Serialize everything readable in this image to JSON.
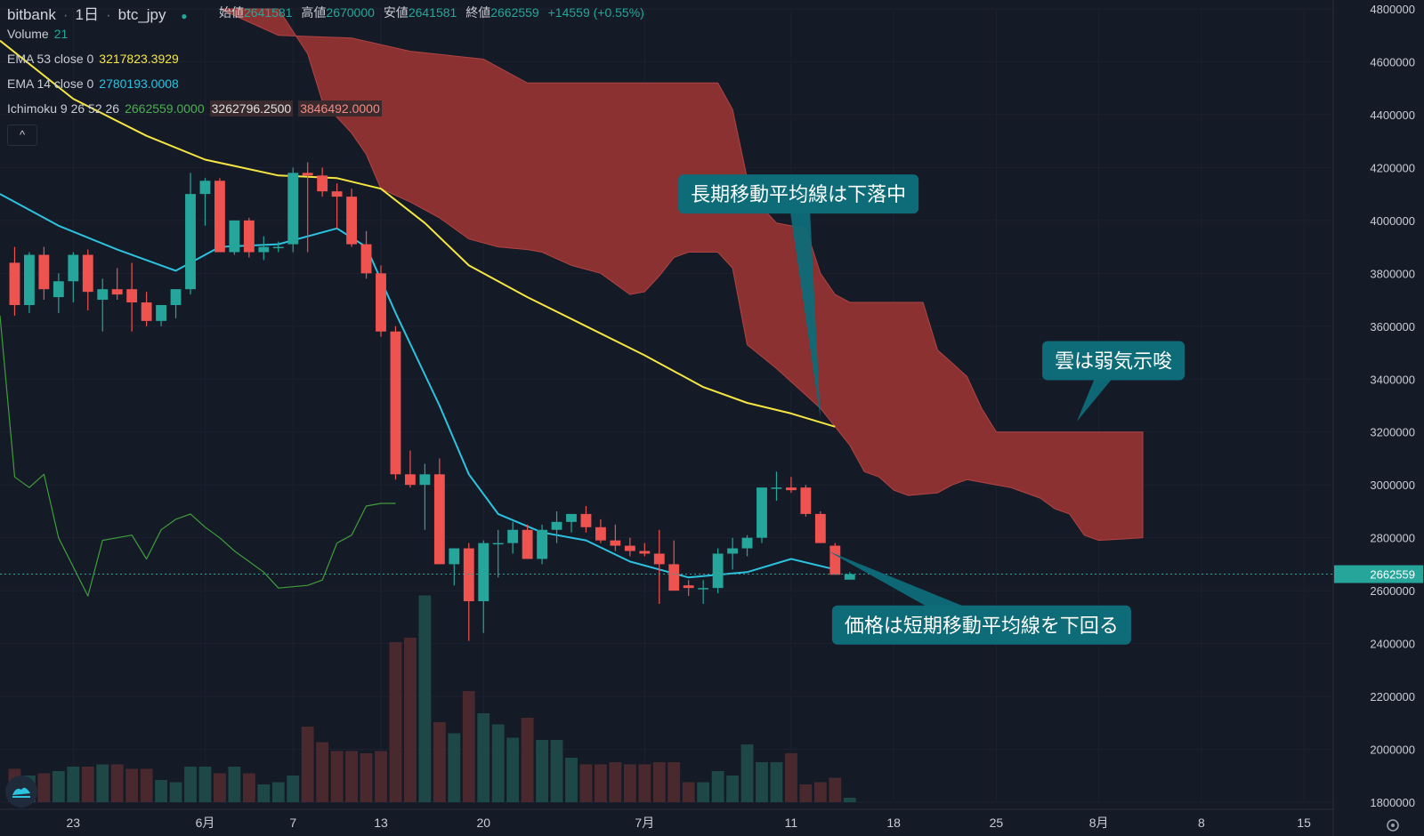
{
  "header": {
    "exchange": "bitbank",
    "interval": "1日",
    "symbol": "btc_jpy",
    "open_label": "始値",
    "open_value": "2641581",
    "high_label": "高値",
    "high_value": "2670000",
    "low_label": "安値",
    "low_value": "2641581",
    "close_label": "終値",
    "close_value": "2662559",
    "change": "+14559 (+0.55%)"
  },
  "legend": {
    "volume_label": "Volume",
    "volume_value": "21",
    "ema53_label": "EMA 53 close 0",
    "ema53_value": "3217823.3929",
    "ema14_label": "EMA 14 close 0",
    "ema14_value": "2780193.0008",
    "ichimoku_label": "Ichimoku 9 26 52 26",
    "ichimoku_v1": "2662559.0000",
    "ichimoku_v2": "3262796.2500",
    "ichimoku_v3": "3846492.0000",
    "collapse_glyph": "^"
  },
  "colors": {
    "bg": "#151a27",
    "up": "#26a69a",
    "down": "#ef5350",
    "ema53": "#f5e642",
    "ema14": "#2cc3e0",
    "lagging": "#3f9e3a",
    "cloud": "#8b3131",
    "callout": "#0e6b78",
    "axis_text": "#c9ccd3"
  },
  "chart_data": {
    "type": "candlestick",
    "title": "bitbank 1日 btc_jpy",
    "ylim": [
      1800000,
      4800000
    ],
    "y_ticks": [
      4800000,
      4600000,
      4400000,
      4200000,
      4000000,
      3800000,
      3600000,
      3400000,
      3200000,
      3000000,
      2800000,
      2600000,
      2400000,
      2200000,
      2000000,
      1800000
    ],
    "y_tick_labels": [
      "4800000",
      "4600000",
      "4400000",
      "4200000",
      "4000000",
      "3800000",
      "3600000",
      "3400000",
      "3200000",
      "3000000",
      "2800000",
      "2600000",
      "2400000",
      "2200000",
      "2000000",
      "1800000"
    ],
    "x_start_day": -1,
    "x_end_day": 90,
    "x_ticks": [
      {
        "day": 4,
        "label": "23"
      },
      {
        "day": 13,
        "label": "6月"
      },
      {
        "day": 19,
        "label": "7"
      },
      {
        "day": 25,
        "label": "13"
      },
      {
        "day": 32,
        "label": "20"
      },
      {
        "day": 43,
        "label": "7月"
      },
      {
        "day": 53,
        "label": "11"
      },
      {
        "day": 60,
        "label": "18"
      },
      {
        "day": 67,
        "label": "25"
      },
      {
        "day": 74,
        "label": "8月"
      },
      {
        "day": 81,
        "label": "8"
      },
      {
        "day": 88,
        "label": "15"
      }
    ],
    "last_price": 2662559,
    "last_price_label": "2662559",
    "candles": [
      [
        3840000,
        3900000,
        3640000,
        3680000
      ],
      [
        3680000,
        3880000,
        3650000,
        3870000
      ],
      [
        3870000,
        3900000,
        3700000,
        3740000
      ],
      [
        3710000,
        3800000,
        3650000,
        3770000
      ],
      [
        3770000,
        3880000,
        3690000,
        3870000
      ],
      [
        3870000,
        3890000,
        3660000,
        3730000
      ],
      [
        3700000,
        3780000,
        3580000,
        3740000
      ],
      [
        3740000,
        3820000,
        3700000,
        3720000
      ],
      [
        3740000,
        3840000,
        3580000,
        3690000
      ],
      [
        3690000,
        3730000,
        3600000,
        3620000
      ],
      [
        3620000,
        3680000,
        3600000,
        3680000
      ],
      [
        3680000,
        3740000,
        3630000,
        3740000
      ],
      [
        3740000,
        4180000,
        3720000,
        4100000
      ],
      [
        4100000,
        4160000,
        3980000,
        4150000
      ],
      [
        4150000,
        4160000,
        3880000,
        3880000
      ],
      [
        3880000,
        4000000,
        3870000,
        4000000
      ],
      [
        4000000,
        4010000,
        3860000,
        3880000
      ],
      [
        3880000,
        3940000,
        3850000,
        3900000
      ],
      [
        3900000,
        3920000,
        3880000,
        3900000
      ],
      [
        3910000,
        4200000,
        3880000,
        4180000
      ],
      [
        4180000,
        4220000,
        3880000,
        4170000
      ],
      [
        4170000,
        4200000,
        4090000,
        4110000
      ],
      [
        4110000,
        4140000,
        3970000,
        4090000
      ],
      [
        4090000,
        4120000,
        3900000,
        3910000
      ],
      [
        3910000,
        3960000,
        3780000,
        3800000
      ],
      [
        3800000,
        3830000,
        3560000,
        3580000
      ],
      [
        3580000,
        3600000,
        3020000,
        3040000
      ],
      [
        3040000,
        3130000,
        2990000,
        3000000
      ],
      [
        3000000,
        3080000,
        2830000,
        3040000
      ],
      [
        3040000,
        3100000,
        2720000,
        2700000
      ],
      [
        2700000,
        2760000,
        2620000,
        2760000
      ],
      [
        2760000,
        2780000,
        2410000,
        2560000
      ],
      [
        2560000,
        2790000,
        2440000,
        2780000
      ],
      [
        2780000,
        2830000,
        2650000,
        2780000
      ],
      [
        2780000,
        2860000,
        2740000,
        2830000
      ],
      [
        2830000,
        2850000,
        2720000,
        2720000
      ],
      [
        2720000,
        2850000,
        2700000,
        2830000
      ],
      [
        2830000,
        2900000,
        2780000,
        2860000
      ],
      [
        2860000,
        2890000,
        2820000,
        2890000
      ],
      [
        2890000,
        2920000,
        2820000,
        2840000
      ],
      [
        2840000,
        2870000,
        2780000,
        2790000
      ],
      [
        2790000,
        2850000,
        2750000,
        2770000
      ],
      [
        2770000,
        2800000,
        2730000,
        2750000
      ],
      [
        2750000,
        2780000,
        2730000,
        2740000
      ],
      [
        2740000,
        2830000,
        2550000,
        2700000
      ],
      [
        2700000,
        2790000,
        2600000,
        2600000
      ],
      [
        2620000,
        2640000,
        2580000,
        2610000
      ],
      [
        2610000,
        2640000,
        2550000,
        2610000
      ],
      [
        2610000,
        2760000,
        2590000,
        2740000
      ],
      [
        2740000,
        2800000,
        2680000,
        2760000
      ],
      [
        2760000,
        2810000,
        2730000,
        2800000
      ],
      [
        2800000,
        2990000,
        2780000,
        2990000
      ],
      [
        2990000,
        3050000,
        2940000,
        2990000
      ],
      [
        2990000,
        3030000,
        2970000,
        2980000
      ],
      [
        2990000,
        3000000,
        2880000,
        2890000
      ],
      [
        2890000,
        2900000,
        2780000,
        2780000
      ],
      [
        2770000,
        2780000,
        2660000,
        2660000
      ],
      [
        2641581,
        2670000,
        2641581,
        2662559
      ]
    ],
    "volumes": [
      15,
      12,
      13,
      14,
      16,
      16,
      17,
      17,
      15,
      15,
      10,
      9,
      16,
      16,
      13,
      16,
      13,
      8,
      9,
      12,
      34,
      27,
      23,
      23,
      22,
      23,
      72,
      74,
      93,
      36,
      31,
      50,
      40,
      35,
      29,
      38,
      28,
      28,
      20,
      17,
      17,
      18,
      17,
      17,
      18,
      18,
      9,
      9,
      14,
      12,
      26,
      18,
      18,
      22,
      8,
      9,
      11,
      2
    ],
    "ema53": [
      [
        -1,
        4680000
      ],
      [
        4,
        4460000
      ],
      [
        9,
        4320000
      ],
      [
        13,
        4230000
      ],
      [
        18,
        4170000
      ],
      [
        22,
        4160000
      ],
      [
        25,
        4120000
      ],
      [
        28,
        3990000
      ],
      [
        31,
        3830000
      ],
      [
        35,
        3710000
      ],
      [
        39,
        3600000
      ],
      [
        43,
        3490000
      ],
      [
        47,
        3370000
      ],
      [
        50,
        3310000
      ],
      [
        53,
        3270000
      ],
      [
        56,
        3220000
      ]
    ],
    "ema14": [
      [
        -1,
        4100000
      ],
      [
        3,
        3980000
      ],
      [
        7,
        3890000
      ],
      [
        11,
        3810000
      ],
      [
        14,
        3900000
      ],
      [
        18,
        3910000
      ],
      [
        22,
        3970000
      ],
      [
        24,
        3900000
      ],
      [
        26,
        3650000
      ],
      [
        29,
        3300000
      ],
      [
        31,
        3040000
      ],
      [
        33,
        2890000
      ],
      [
        36,
        2820000
      ],
      [
        39,
        2790000
      ],
      [
        42,
        2710000
      ],
      [
        46,
        2650000
      ],
      [
        50,
        2670000
      ],
      [
        53,
        2720000
      ],
      [
        56,
        2680000
      ]
    ],
    "lagging_span": [
      [
        -1,
        3640000
      ],
      [
        0,
        3030000
      ],
      [
        1,
        2990000
      ],
      [
        2,
        3040000
      ],
      [
        3,
        2800000
      ],
      [
        5,
        2580000
      ],
      [
        6,
        2790000
      ],
      [
        8,
        2810000
      ],
      [
        9,
        2720000
      ],
      [
        10,
        2830000
      ],
      [
        11,
        2870000
      ],
      [
        12,
        2890000
      ],
      [
        13,
        2840000
      ],
      [
        14,
        2800000
      ],
      [
        15,
        2750000
      ],
      [
        17,
        2670000
      ],
      [
        18,
        2610000
      ],
      [
        20,
        2620000
      ],
      [
        21,
        2640000
      ],
      [
        22,
        2780000
      ],
      [
        23,
        2810000
      ],
      [
        24,
        2920000
      ],
      [
        25,
        2930000
      ],
      [
        26,
        2930000
      ]
    ],
    "cloud_upper": [
      [
        14,
        4800000
      ],
      [
        18,
        4700000
      ],
      [
        23,
        4690000
      ],
      [
        27,
        4640000
      ],
      [
        32,
        4610000
      ],
      [
        35,
        4520000
      ],
      [
        48,
        4520000
      ],
      [
        49,
        4420000
      ],
      [
        50,
        4160000
      ],
      [
        51,
        4050000
      ],
      [
        52,
        3990000
      ],
      [
        54,
        3970000
      ],
      [
        55,
        3800000
      ],
      [
        56,
        3720000
      ],
      [
        57,
        3690000
      ],
      [
        62,
        3690000
      ],
      [
        63,
        3510000
      ],
      [
        64,
        3460000
      ],
      [
        65,
        3410000
      ],
      [
        66,
        3290000
      ],
      [
        67,
        3200000
      ],
      [
        77,
        3200000
      ],
      [
        77,
        2800000
      ]
    ],
    "cloud_lower": [
      [
        77,
        2800000
      ],
      [
        74,
        2790000
      ],
      [
        73,
        2810000
      ],
      [
        72,
        2890000
      ],
      [
        71,
        2910000
      ],
      [
        70,
        2950000
      ],
      [
        68,
        2990000
      ],
      [
        66,
        3010000
      ],
      [
        65,
        3020000
      ],
      [
        64,
        3000000
      ],
      [
        63,
        2970000
      ],
      [
        61,
        2960000
      ],
      [
        60,
        2980000
      ],
      [
        59,
        3030000
      ],
      [
        58,
        3050000
      ],
      [
        57,
        3150000
      ],
      [
        56,
        3220000
      ],
      [
        55,
        3290000
      ],
      [
        53,
        3390000
      ],
      [
        52,
        3440000
      ],
      [
        50,
        3530000
      ],
      [
        49,
        3820000
      ],
      [
        48,
        3880000
      ],
      [
        46,
        3880000
      ],
      [
        45,
        3860000
      ],
      [
        44,
        3790000
      ],
      [
        43,
        3730000
      ],
      [
        42,
        3720000
      ],
      [
        40,
        3800000
      ],
      [
        38,
        3830000
      ],
      [
        36,
        3880000
      ],
      [
        35,
        3890000
      ],
      [
        33,
        3900000
      ],
      [
        31,
        3930000
      ],
      [
        29,
        4010000
      ],
      [
        27,
        4070000
      ],
      [
        25,
        4120000
      ],
      [
        24,
        4250000
      ],
      [
        23,
        4330000
      ],
      [
        21,
        4450000
      ],
      [
        20,
        4630000
      ],
      [
        18,
        4800000
      ]
    ],
    "annotations": [
      {
        "text": "長期移動平均線は下落中",
        "box_day": 53.5,
        "box_price": 4100000,
        "tip_day": 55,
        "tip_price": 3250000
      },
      {
        "text": "雲は弱気示唆",
        "box_day": 75,
        "box_price": 3470000,
        "tip_day": 72.5,
        "tip_price": 3240000
      },
      {
        "text": "価格は短期移動平均線を下回る",
        "box_day": 66,
        "box_price": 2470000,
        "tip_day": 55.5,
        "tip_price": 2750000
      }
    ]
  }
}
